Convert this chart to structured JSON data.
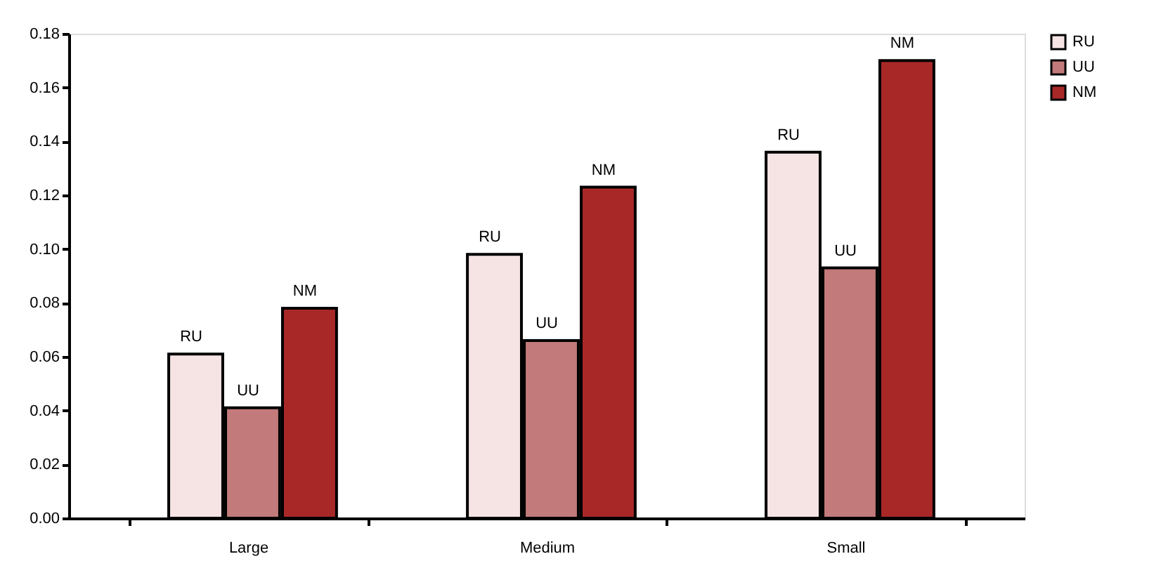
{
  "chart_data": {
    "type": "bar",
    "categories": [
      "Large",
      "Medium",
      "Small"
    ],
    "series": [
      {
        "name": "RU",
        "color": "#f6e4e4",
        "values": [
          0.061,
          0.098,
          0.136
        ],
        "value_labels": [
          "RU",
          "RU",
          "RU"
        ]
      },
      {
        "name": "UU",
        "color": "#c27a7a",
        "values": [
          0.041,
          0.066,
          0.093
        ],
        "value_labels": [
          "UU",
          "UU",
          "UU"
        ]
      },
      {
        "name": "NM",
        "color": "#a82828",
        "values": [
          0.078,
          0.123,
          0.17
        ],
        "value_labels": [
          "NM",
          "NM",
          "NM"
        ]
      }
    ],
    "ylim": [
      0,
      0.18
    ],
    "yticks": [
      {
        "value": 0,
        "label": "0.00"
      },
      {
        "value": 0.02,
        "label": "0.02"
      },
      {
        "value": 0.04,
        "label": "0.04"
      },
      {
        "value": 0.06,
        "label": "0.06"
      },
      {
        "value": 0.08,
        "label": "0.08"
      },
      {
        "value": 0.1,
        "label": "0.10"
      },
      {
        "value": 0.12,
        "label": "0.12"
      },
      {
        "value": 0.14,
        "label": "0.14"
      },
      {
        "value": 0.16,
        "label": "0.16"
      },
      {
        "value": 0.18,
        "label": "0.18"
      }
    ],
    "grid": false,
    "legend": "right"
  }
}
